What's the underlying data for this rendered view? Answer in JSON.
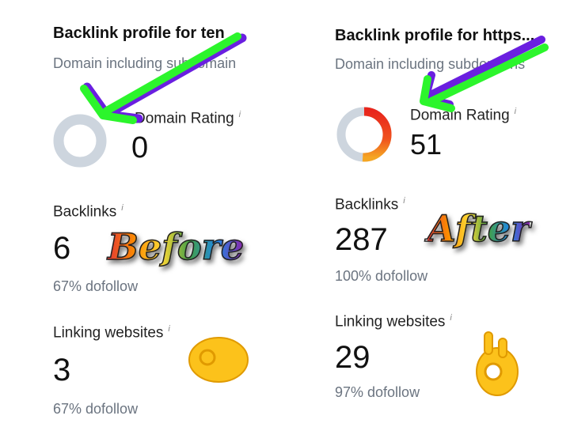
{
  "before": {
    "title": "Backlink profile for ten",
    "subtitle": "Domain including subdomain",
    "domain_rating_label": "Domain Rating",
    "domain_rating": "0",
    "domain_rating_value": 0,
    "backlinks_label": "Backlinks",
    "backlinks": "6",
    "backlinks_dofollow": "67% dofollow",
    "linking_label": "Linking websites",
    "linking": "3",
    "linking_dofollow": "67% dofollow",
    "sticker": "Before"
  },
  "after": {
    "title": "Backlink profile for https...",
    "subtitle": "Domain including subdomains",
    "domain_rating_label": "Domain Rating",
    "domain_rating": "51",
    "domain_rating_value": 51,
    "backlinks_label": "Backlinks",
    "backlinks": "287",
    "backlinks_dofollow": "100% dofollow",
    "linking_label": "Linking websites",
    "linking": "29",
    "linking_dofollow": "97% dofollow",
    "sticker": "After"
  },
  "info_glyph": "i",
  "colors": {
    "ring_bg": "#cdd5de",
    "ring_red": "#e8261c",
    "ring_orange": "#f5a623",
    "arrow_green": "#2cf52c",
    "arrow_purple": "#6a1fe0"
  }
}
